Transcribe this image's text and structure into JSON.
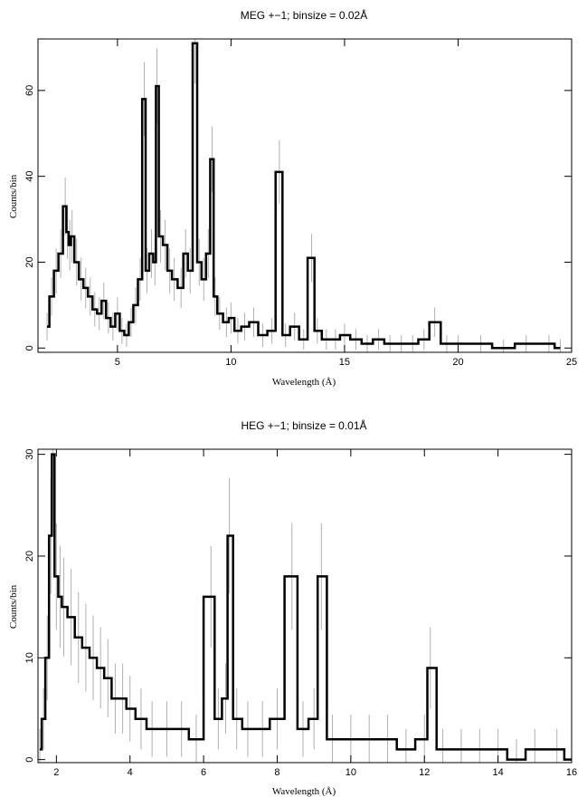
{
  "chart_data": [
    {
      "type": "line",
      "title": "MEG +−1; binsize = 0.02Å",
      "xlabel": "Wavelength (Å)",
      "ylabel": "Counts/bin",
      "xlim": [
        1.5,
        25
      ],
      "ylim": [
        -1,
        72
      ],
      "xticks": [
        5,
        10,
        15,
        20,
        25
      ],
      "yticks": [
        0,
        20,
        40,
        60
      ],
      "grid": false,
      "series": [
        {
          "values_description_free": true,
          "x": [
            1.9,
            2.1,
            2.3,
            2.5,
            2.7,
            2.8,
            2.9,
            3.0,
            3.2,
            3.4,
            3.6,
            3.8,
            4.0,
            4.2,
            4.4,
            4.6,
            4.8,
            5.0,
            5.2,
            5.4,
            5.6,
            5.8,
            6.0,
            6.18,
            6.3,
            6.5,
            6.65,
            6.74,
            6.9,
            7.1,
            7.3,
            7.5,
            7.8,
            8.0,
            8.2,
            8.42,
            8.6,
            8.8,
            9.0,
            9.17,
            9.3,
            9.5,
            9.8,
            10.0,
            10.3,
            10.6,
            11.0,
            11.4,
            11.8,
            12.13,
            12.4,
            12.8,
            13.2,
            13.55,
            13.8,
            14.2,
            14.6,
            15.0,
            15.5,
            16.0,
            16.5,
            17.0,
            17.5,
            18.0,
            18.5,
            18.97,
            19.5,
            20.0,
            21.0,
            22.0,
            23.0,
            24.0,
            24.5
          ],
          "y": [
            5,
            12,
            18,
            22,
            33,
            27,
            24,
            26,
            20,
            16,
            14,
            12,
            9,
            8,
            11,
            7,
            5,
            8,
            4,
            3,
            6,
            10,
            16,
            58,
            18,
            22,
            20,
            61,
            26,
            24,
            18,
            16,
            14,
            22,
            18,
            71,
            20,
            16,
            22,
            44,
            12,
            8,
            6,
            7,
            4,
            5,
            6,
            3,
            4,
            41,
            3,
            5,
            2,
            21,
            4,
            2,
            2,
            3,
            2,
            1,
            2,
            1,
            1,
            1,
            2,
            6,
            1,
            1,
            1,
            0,
            1,
            1,
            0
          ]
        }
      ]
    },
    {
      "type": "line",
      "title": "HEG +−1; binsize = 0.01Å",
      "xlabel": "Wavelength (Å)",
      "ylabel": "Counts/bin",
      "xlim": [
        1.5,
        16
      ],
      "ylim": [
        -0.3,
        30.5
      ],
      "xticks": [
        2,
        4,
        6,
        8,
        10,
        12,
        14,
        16
      ],
      "yticks": [
        0,
        10,
        20,
        30
      ],
      "grid": false,
      "series": [
        {
          "x": [
            1.55,
            1.65,
            1.75,
            1.85,
            1.9,
            2.0,
            2.1,
            2.2,
            2.4,
            2.6,
            2.8,
            3.0,
            3.2,
            3.4,
            3.6,
            3.8,
            4.0,
            4.3,
            4.6,
            5.0,
            5.4,
            5.8,
            6.2,
            6.4,
            6.6,
            6.7,
            6.9,
            7.2,
            7.6,
            8.0,
            8.4,
            8.7,
            9.0,
            9.2,
            9.5,
            10.0,
            10.5,
            11.0,
            11.5,
            12.0,
            12.16,
            12.5,
            13.0,
            13.5,
            14.0,
            14.5,
            15.0,
            15.6,
            16.0
          ],
          "y": [
            1,
            4,
            10,
            22,
            30,
            18,
            16,
            15,
            14,
            12,
            11,
            10,
            9,
            8,
            6,
            6,
            5,
            4,
            3,
            3,
            3,
            2,
            16,
            4,
            6,
            22,
            4,
            3,
            3,
            4,
            18,
            3,
            4,
            18,
            2,
            2,
            2,
            2,
            1,
            2,
            9,
            1,
            1,
            1,
            1,
            0,
            1,
            1,
            0
          ]
        }
      ]
    }
  ]
}
